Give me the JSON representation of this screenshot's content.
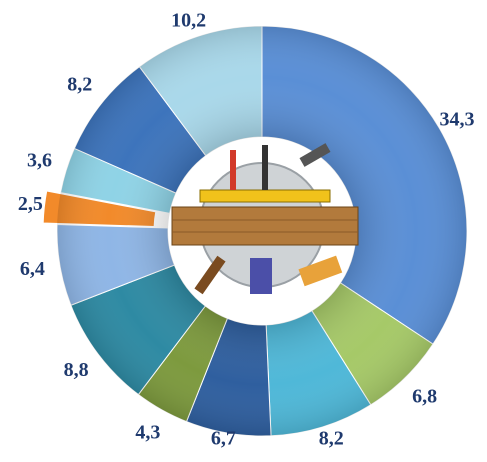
{
  "chart_data": {
    "type": "donut",
    "values": [
      34.3,
      6.8,
      8.2,
      6.7,
      4.3,
      8.8,
      6.4,
      2.5,
      3.6,
      8.2,
      10.2
    ],
    "value_labels": [
      "34,3",
      "6,8",
      "8,2",
      "6,7",
      "4,3",
      "8,8",
      "6,4",
      "2,5",
      "3,6",
      "8,2",
      "10,2"
    ],
    "colors": [
      "#5a8fd6",
      "#a6c968",
      "#4fb8d8",
      "#2f5f9f",
      "#7d9a3e",
      "#2e8aa3",
      "#8fb6e6",
      "#f28a2a",
      "#8fd3e6",
      "#3d74bc",
      "#a9d8ea"
    ]
  }
}
